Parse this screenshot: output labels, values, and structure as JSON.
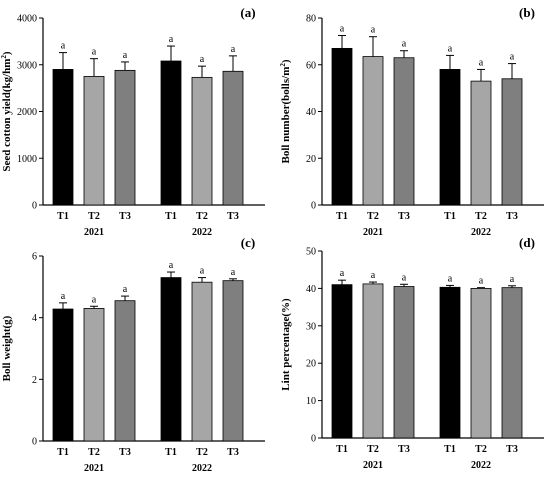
{
  "chart_data": [
    {
      "type": "bar",
      "panel_label": "(a)",
      "ylabel_parts": [
        "Seed cotton yield(kg/hm",
        "2",
        ")"
      ],
      "ylim": [
        0,
        4000
      ],
      "yticks": [
        "0",
        "1000",
        "2000",
        "3000",
        "4000"
      ],
      "ytick_values": [
        0,
        1000,
        2000,
        3000,
        4000
      ],
      "groups": [
        {
          "year": "2021",
          "bars": [
            {
              "label": "T1",
              "value": 2900,
              "error": 360,
              "sig": "a"
            },
            {
              "label": "T2",
              "value": 2750,
              "error": 380,
              "sig": "a"
            },
            {
              "label": "T3",
              "value": 2880,
              "error": 180,
              "sig": "a"
            }
          ]
        },
        {
          "year": "2022",
          "bars": [
            {
              "label": "T1",
              "value": 3080,
              "error": 320,
              "sig": "a"
            },
            {
              "label": "T2",
              "value": 2730,
              "error": 240,
              "sig": "a"
            },
            {
              "label": "T3",
              "value": 2860,
              "error": 330,
              "sig": "a"
            }
          ]
        }
      ]
    },
    {
      "type": "bar",
      "panel_label": "(b)",
      "ylabel_parts": [
        "Boll number(bolls/m",
        "2",
        ")"
      ],
      "ylim": [
        0,
        80
      ],
      "yticks": [
        "0",
        "20",
        "40",
        "60",
        "80"
      ],
      "ytick_values": [
        0,
        20,
        40,
        60,
        80
      ],
      "groups": [
        {
          "year": "2021",
          "bars": [
            {
              "label": "T1",
              "value": 67,
              "error": 5.5,
              "sig": "a"
            },
            {
              "label": "T2",
              "value": 63.5,
              "error": 8.5,
              "sig": "a"
            },
            {
              "label": "T3",
              "value": 63,
              "error": 3,
              "sig": "a"
            }
          ]
        },
        {
          "year": "2022",
          "bars": [
            {
              "label": "T1",
              "value": 58,
              "error": 6,
              "sig": "a"
            },
            {
              "label": "T2",
              "value": 53,
              "error": 5,
              "sig": "a"
            },
            {
              "label": "T3",
              "value": 54,
              "error": 6.5,
              "sig": "a"
            }
          ]
        }
      ]
    },
    {
      "type": "bar",
      "panel_label": "(c)",
      "ylabel_parts": [
        "Boll weight(g)"
      ],
      "ylim": [
        0,
        6
      ],
      "yticks": [
        "0",
        "2",
        "4",
        "6"
      ],
      "ytick_values": [
        0,
        2,
        4,
        6
      ],
      "groups": [
        {
          "year": "2021",
          "bars": [
            {
              "label": "T1",
              "value": 4.28,
              "error": 0.2,
              "sig": "a"
            },
            {
              "label": "T2",
              "value": 4.3,
              "error": 0.07,
              "sig": "a"
            },
            {
              "label": "T3",
              "value": 4.55,
              "error": 0.15,
              "sig": "a"
            }
          ]
        },
        {
          "year": "2022",
          "bars": [
            {
              "label": "T1",
              "value": 5.3,
              "error": 0.18,
              "sig": "a"
            },
            {
              "label": "T2",
              "value": 5.15,
              "error": 0.15,
              "sig": "a"
            },
            {
              "label": "T3",
              "value": 5.2,
              "error": 0.06,
              "sig": "a"
            }
          ]
        }
      ]
    },
    {
      "type": "bar",
      "panel_label": "(d)",
      "ylabel_parts": [
        "Lint percentage(%)"
      ],
      "ylim": [
        0,
        50
      ],
      "yticks": [
        "0",
        "10",
        "20",
        "30",
        "40",
        "50"
      ],
      "ytick_values": [
        0,
        10,
        20,
        30,
        40,
        50
      ],
      "groups": [
        {
          "year": "2021",
          "bars": [
            {
              "label": "T1",
              "value": 41,
              "error": 1.2,
              "sig": "a"
            },
            {
              "label": "T2",
              "value": 41.2,
              "error": 0.5,
              "sig": "a"
            },
            {
              "label": "T3",
              "value": 40.5,
              "error": 0.6,
              "sig": "a"
            }
          ]
        },
        {
          "year": "2022",
          "bars": [
            {
              "label": "T1",
              "value": 40.3,
              "error": 0.5,
              "sig": "a"
            },
            {
              "label": "T2",
              "value": 40,
              "error": 0.2,
              "sig": "a"
            },
            {
              "label": "T3",
              "value": 40.2,
              "error": 0.5,
              "sig": "a"
            }
          ]
        }
      ]
    }
  ],
  "colors": {
    "T1": "#000000",
    "T2": "#a6a6a6",
    "T3": "#7f7f7f",
    "axis": "#000000",
    "error_bar": "#000000"
  }
}
